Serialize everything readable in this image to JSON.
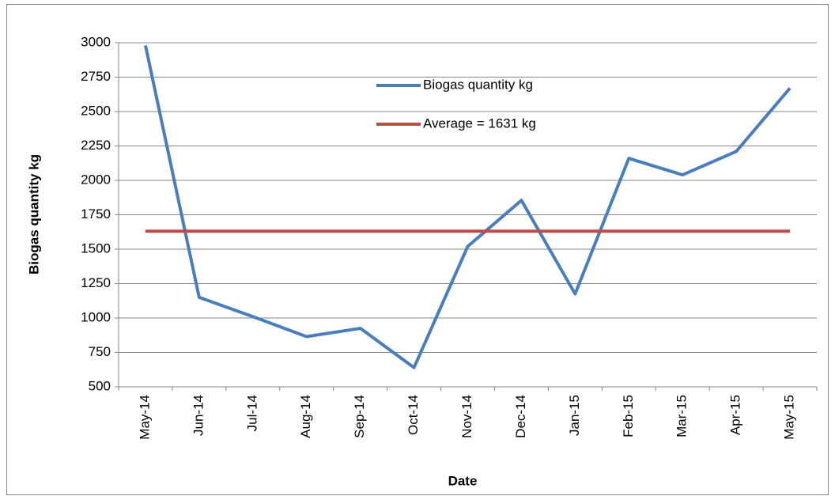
{
  "chart_data": {
    "type": "line",
    "x_label": "Date",
    "y_label": "Biogas quantity kg",
    "categories": [
      "May-14",
      "Jun-14",
      "Jul-14",
      "Aug-14",
      "Sep-14",
      "Oct-14",
      "Nov-14",
      "Dec-14",
      "Jan-15",
      "Feb-15",
      "Mar-15",
      "Apr-15",
      "May-15"
    ],
    "series": [
      {
        "name": "Biogas quantity kg",
        "color": "#4a7ebb",
        "values": [
          2980,
          1150,
          1010,
          865,
          925,
          640,
          1520,
          1855,
          1175,
          2160,
          2040,
          2210,
          2670
        ]
      },
      {
        "name": "Average = 1631  kg",
        "color": "#be4b48",
        "values": [
          1631,
          1631,
          1631,
          1631,
          1631,
          1631,
          1631,
          1631,
          1631,
          1631,
          1631,
          1631,
          1631
        ]
      }
    ],
    "ylim": [
      500,
      3000
    ],
    "yticks": [
      500,
      750,
      1000,
      1250,
      1500,
      1750,
      2000,
      2250,
      2500,
      2750,
      3000
    ],
    "grid": true
  }
}
